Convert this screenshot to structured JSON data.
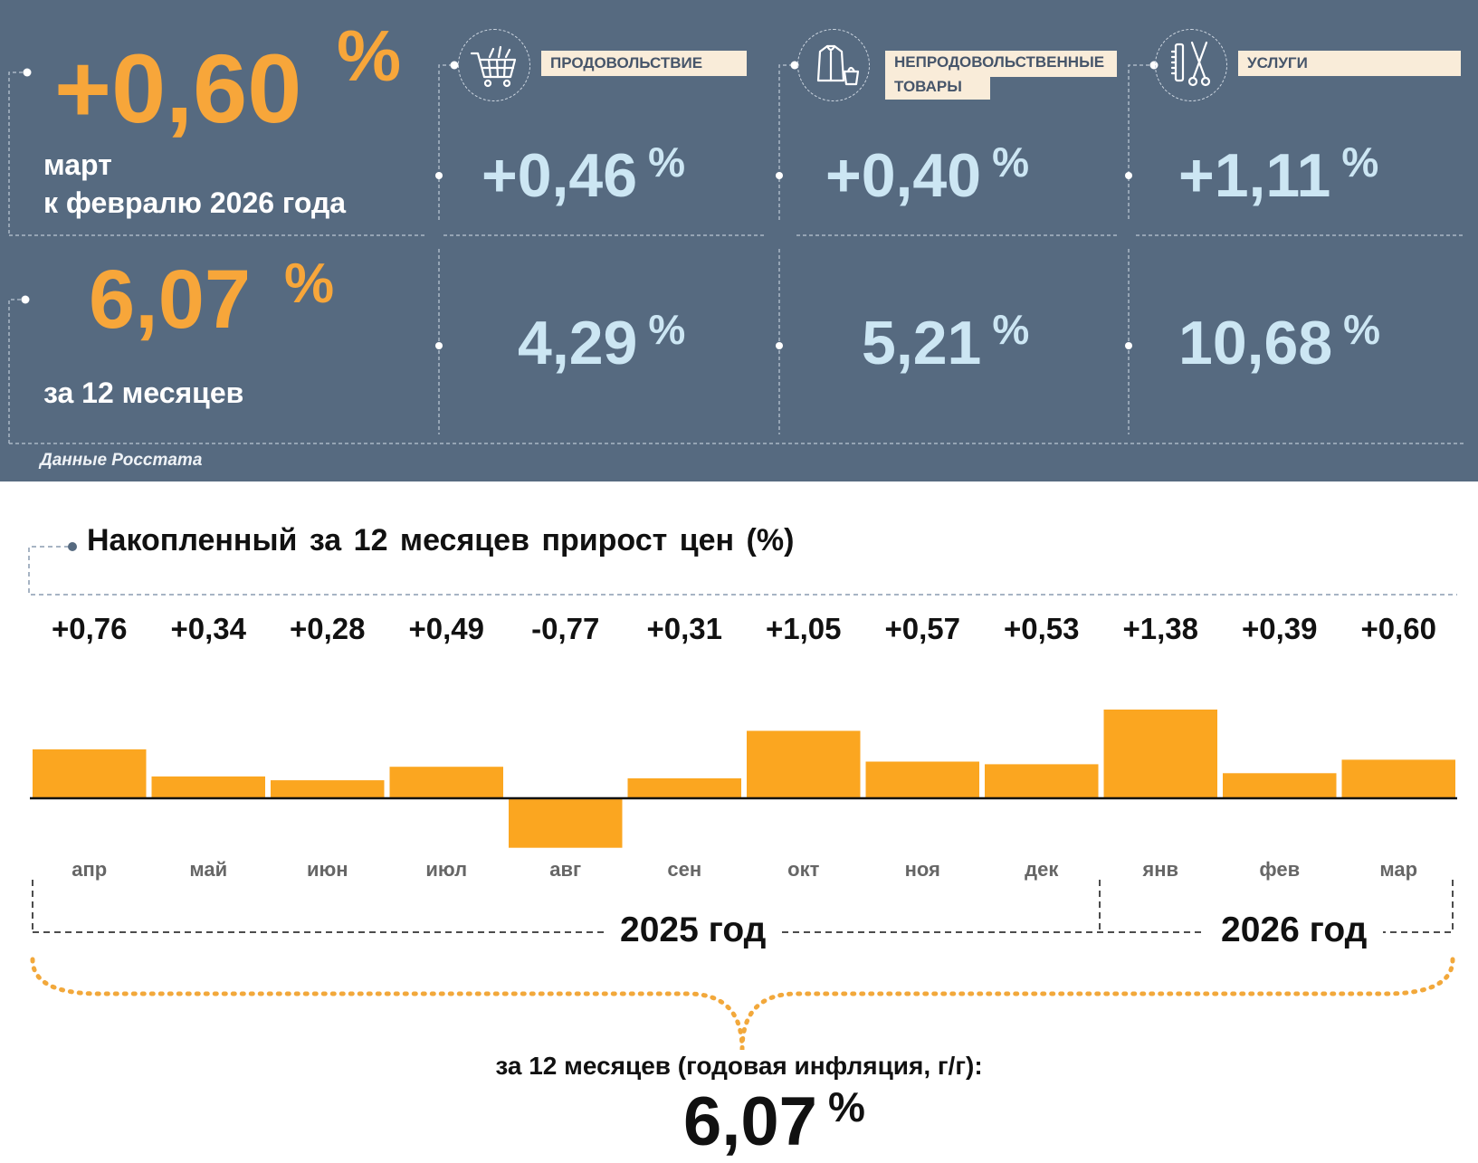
{
  "header": {
    "monthly": {
      "value": "+0,60",
      "pct": "%",
      "caption_line1": "март",
      "caption_line2": "к февралю 2026 года"
    },
    "annual": {
      "value": "6,07",
      "pct": "%",
      "caption": "за 12 месяцев"
    },
    "source": "Данные Росстата",
    "categories": [
      {
        "tag": "ПРОДОВОЛЬСТВИЕ",
        "monthly": "+0,46",
        "annual": "4,29",
        "pct": "%",
        "icon": "shopping-cart-icon"
      },
      {
        "tag_line1": "НЕПРОДОВОЛЬСТВЕННЫЕ",
        "tag_line2": "ТОВАРЫ",
        "monthly": "+0,40",
        "annual": "5,21",
        "pct": "%",
        "icon": "clothes-bag-icon"
      },
      {
        "tag": "УСЛУГИ",
        "monthly": "+1,11",
        "annual": "10,68",
        "pct": "%",
        "icon": "comb-scissors-icon"
      }
    ]
  },
  "chart_data": {
    "type": "bar",
    "title": "Накопленный за 12 месяцев прирост цен (%)",
    "categories": [
      "апр",
      "май",
      "июн",
      "июл",
      "авг",
      "сен",
      "окт",
      "ноя",
      "дек",
      "янв",
      "фев",
      "мар"
    ],
    "values": [
      0.76,
      0.34,
      0.28,
      0.49,
      -0.77,
      0.31,
      1.05,
      0.57,
      0.53,
      1.38,
      0.39,
      0.6
    ],
    "value_labels": [
      "+0,76",
      "+0,34",
      "+0,28",
      "+0,49",
      "-0,77",
      "+0,31",
      "+1,05",
      "+0,57",
      "+0,53",
      "+1,38",
      "+0,39",
      "+0,60"
    ],
    "years": [
      "2025 год",
      "2026 год"
    ],
    "bar_color": "#fba620"
  },
  "summary": {
    "caption": "за 12 месяцев (годовая инфляция, г/г):",
    "value": "6,07",
    "pct": "%"
  },
  "colors": {
    "panel_bg": "#566a80",
    "accent_orange": "#f7a63a",
    "value_blue": "#cce6f3",
    "tag_bg": "#f9ecd9"
  }
}
